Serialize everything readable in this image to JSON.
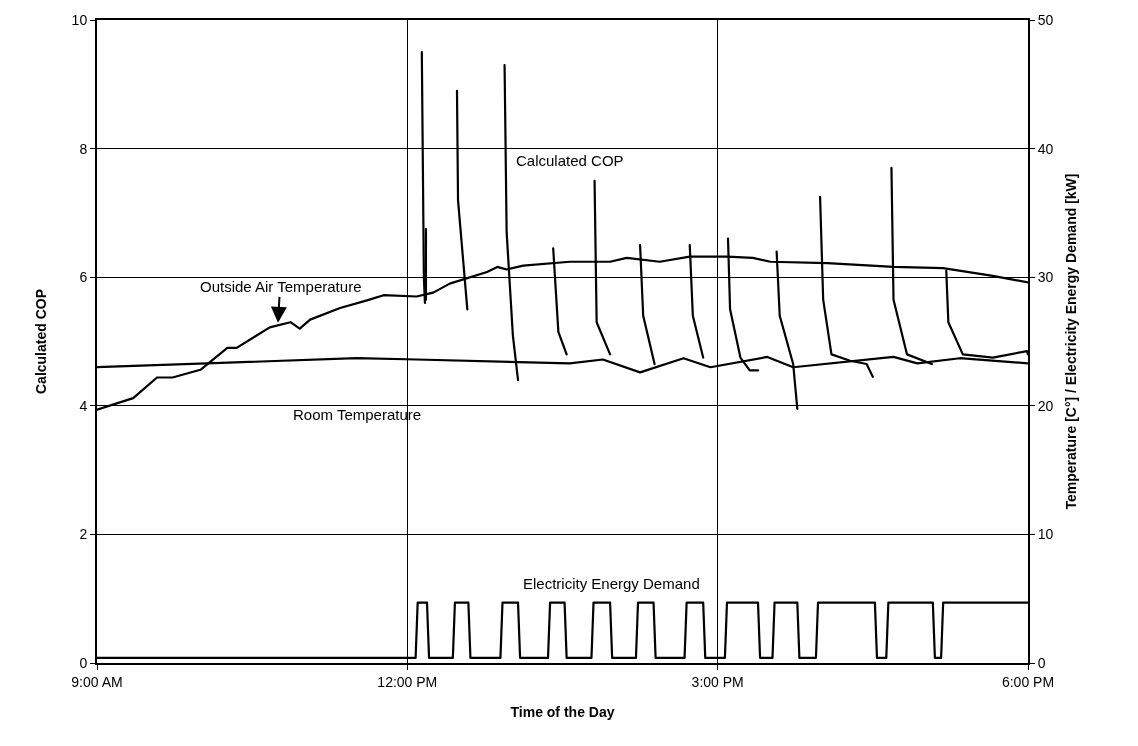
{
  "chart_data": {
    "type": "line",
    "xlabel": "Time of the Day",
    "ylabel": "Calculated COP",
    "y2label": "Temperature [C°] / Electricity Energy Demand [kW]",
    "xlim": [
      9,
      18
    ],
    "xticks": [
      {
        "value": 9,
        "label": "9:00 AM"
      },
      {
        "value": 12,
        "label": "12:00 PM"
      },
      {
        "value": 15,
        "label": "3:00 PM"
      },
      {
        "value": 18,
        "label": "6:00 PM"
      }
    ],
    "ylim": [
      0,
      10
    ],
    "yticks": [
      0,
      2,
      4,
      6,
      8,
      10
    ],
    "y2lim": [
      0,
      50
    ],
    "y2ticks": [
      0,
      10,
      20,
      30,
      40,
      50
    ],
    "grid": true,
    "marker": "none",
    "line_style": "solid",
    "series": [
      {
        "color": "#000000",
        "x": [
          12.14,
          12.16,
          12.17,
          null,
          12.18,
          12.18,
          null,
          12.48,
          12.49,
          12.58,
          null,
          12.94,
          12.96,
          13.02,
          13.07,
          null,
          13.41,
          13.46,
          13.54,
          null,
          13.81,
          13.83,
          13.96,
          null,
          14.25,
          14.28,
          14.39,
          null,
          14.73,
          14.76,
          14.86,
          null,
          15.1,
          15.12,
          15.22,
          15.31,
          15.39,
          null,
          15.57,
          15.6,
          15.73,
          15.77,
          null,
          15.99,
          16.02,
          16.1,
          16.28,
          16.44,
          16.5,
          null,
          16.68,
          16.7,
          16.83,
          17.07,
          null,
          17.21,
          17.23,
          17.37,
          17.66,
          17.99,
          18.0
        ],
        "values": [
          9.5,
          6.0,
          5.6,
          null,
          6.75,
          5.65,
          null,
          8.9,
          7.2,
          5.5,
          null,
          9.3,
          6.7,
          5.1,
          4.4,
          null,
          6.45,
          5.15,
          4.8,
          null,
          7.5,
          5.3,
          4.8,
          null,
          6.5,
          5.4,
          4.65,
          null,
          6.5,
          5.4,
          4.75,
          null,
          6.6,
          5.5,
          4.75,
          4.55,
          4.55,
          null,
          6.4,
          5.4,
          4.65,
          3.95,
          null,
          7.25,
          5.65,
          4.8,
          4.7,
          4.65,
          4.45,
          null,
          7.7,
          5.65,
          4.8,
          4.65,
          null,
          6.1,
          5.3,
          4.8,
          4.75,
          4.85,
          4.8
        ]
      },
      {
        "color": "#000000",
        "axis": "y2",
        "x": [
          9.0,
          9.35,
          9.58,
          9.73,
          10.0,
          10.26,
          10.35,
          10.67,
          10.87,
          10.96,
          11.06,
          11.35,
          11.61,
          11.77,
          12.09,
          12.25,
          12.41,
          12.77,
          12.87,
          12.96,
          13.12,
          13.57,
          13.96,
          14.12,
          14.44,
          14.73,
          15.09,
          15.34,
          15.51,
          16.06,
          16.7,
          17.18,
          17.66,
          18.0
        ],
        "values": [
          19.7,
          20.6,
          22.2,
          22.2,
          22.8,
          24.5,
          24.5,
          26.1,
          26.5,
          26.0,
          26.7,
          27.6,
          28.2,
          28.6,
          28.5,
          28.8,
          29.5,
          30.4,
          30.8,
          30.6,
          30.9,
          31.2,
          31.2,
          31.5,
          31.2,
          31.6,
          31.6,
          31.5,
          31.2,
          31.1,
          30.8,
          30.7,
          30.1,
          29.6
        ]
      },
      {
        "color": "#000000",
        "axis": "y2",
        "x": [
          9.0,
          10.06,
          11.51,
          12.09,
          13.57,
          13.89,
          14.25,
          14.67,
          14.93,
          15.48,
          15.73,
          16.7,
          16.93,
          17.34,
          18.0
        ],
        "values": [
          23.0,
          23.3,
          23.7,
          23.6,
          23.3,
          23.6,
          22.6,
          23.7,
          23.0,
          23.8,
          23.0,
          23.8,
          23.3,
          23.7,
          23.3
        ]
      },
      {
        "color": "#000000",
        "axis": "y2",
        "x": [
          9.0,
          12.08,
          12.1,
          12.19,
          12.21,
          12.44,
          12.46,
          12.59,
          12.61,
          12.9,
          12.92,
          13.07,
          13.09,
          13.36,
          13.38,
          13.52,
          13.54,
          13.78,
          13.8,
          13.96,
          13.98,
          14.21,
          14.23,
          14.38,
          14.4,
          14.68,
          14.7,
          14.86,
          14.88,
          15.07,
          15.09,
          15.39,
          15.41,
          15.53,
          15.55,
          15.77,
          15.79,
          15.95,
          15.97,
          16.52,
          16.54,
          16.63,
          16.65,
          17.08,
          17.1,
          17.16,
          17.18,
          18.0
        ],
        "values": [
          0.4,
          0.4,
          4.7,
          4.7,
          0.4,
          0.4,
          4.7,
          4.7,
          0.4,
          0.4,
          4.7,
          4.7,
          0.4,
          0.4,
          4.7,
          4.7,
          0.4,
          0.4,
          4.7,
          4.7,
          0.4,
          0.4,
          4.7,
          4.7,
          0.4,
          0.4,
          4.7,
          4.7,
          0.4,
          0.4,
          4.7,
          4.7,
          0.4,
          0.4,
          4.7,
          4.7,
          0.4,
          0.4,
          4.7,
          4.7,
          0.4,
          0.4,
          4.7,
          4.7,
          0.4,
          0.4,
          4.7,
          4.7
        ]
      }
    ],
    "annotations": [
      "Calculated COP",
      {
        "text": "Outside Air Temperature",
        "x": 10.75,
        "y": 5.29
      },
      "Room Temperature",
      "Electricity Energy Demand"
    ]
  }
}
